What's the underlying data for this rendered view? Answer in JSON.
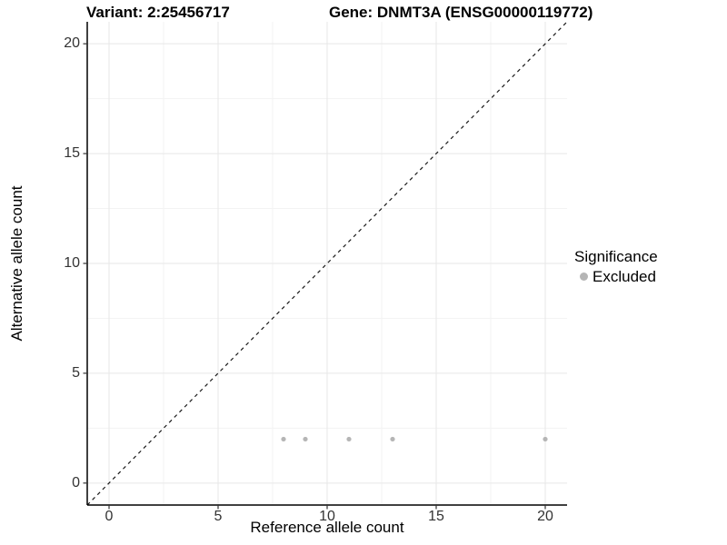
{
  "chart_data": {
    "type": "scatter",
    "titles": {
      "left": "Variant: 2:25456717",
      "right": "Gene: DNMT3A (ENSG00000119772)"
    },
    "xlabel": "Reference allele count",
    "ylabel": "Alternative allele count",
    "xlim": [
      -1,
      21
    ],
    "ylim": [
      -1,
      21
    ],
    "x_ticks": [
      0,
      5,
      10,
      15,
      20
    ],
    "y_ticks": [
      0,
      5,
      10,
      15,
      20
    ],
    "x_minor_ticks": [
      2.5,
      7.5,
      12.5,
      17.5
    ],
    "y_minor_ticks": [
      2.5,
      7.5,
      12.5,
      17.5
    ],
    "series": [
      {
        "name": "Excluded",
        "color": "#b5b5b5",
        "points": [
          [
            8,
            2
          ],
          [
            9,
            2
          ],
          [
            11,
            2
          ],
          [
            13,
            2
          ],
          [
            20,
            2
          ]
        ]
      }
    ],
    "reference_line": {
      "meaning": "identity line y = x",
      "style": "dashed",
      "color": "#1a1a1a",
      "x1": -1,
      "y1": -1,
      "x2": 21,
      "y2": 21
    },
    "legend": {
      "title": "Significance",
      "position": "right",
      "items": [
        {
          "label": "Excluded",
          "color": "#b5b5b5"
        }
      ]
    },
    "grid": {
      "show": true,
      "major_color": "#e7e7e7",
      "minor_color": "#f3f3f3"
    },
    "axis_color": "#000000",
    "tick_color": "#333333"
  }
}
